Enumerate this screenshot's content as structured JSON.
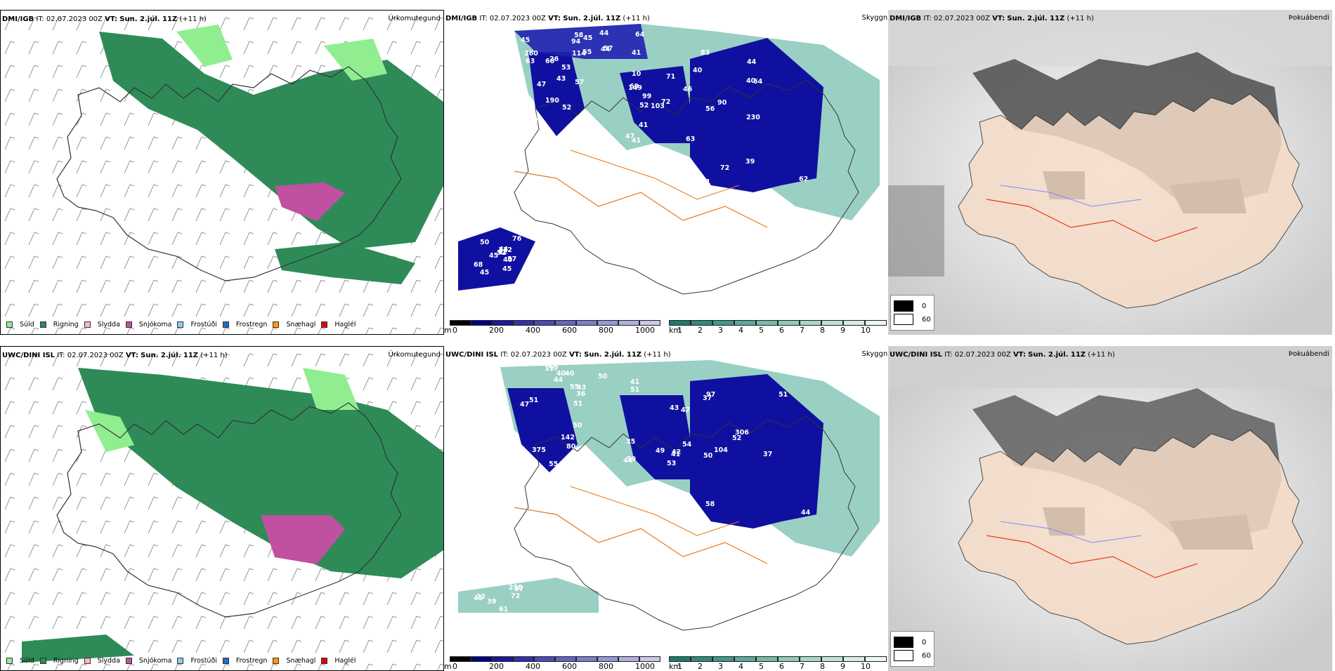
{
  "rows": [
    {
      "model_label": "DMI/IGB",
      "init_time": "IT: 02.07.2023 00Z",
      "valid_label": "VT:",
      "valid_time": "Sun. 2.júl. 11Z",
      "lead": "(+11 h)",
      "cloud_labels": [
        "190",
        "149",
        "230",
        "260",
        "112",
        "61",
        "71",
        "64",
        "44",
        "52",
        "63",
        "63",
        "56",
        "64",
        "45",
        "43",
        "41",
        "40",
        "45",
        "68",
        "47",
        "47",
        "72",
        "58",
        "44",
        "52",
        "69",
        "44",
        "45",
        "40",
        "57",
        "103",
        "39",
        "94",
        "50",
        "53",
        "41",
        "62",
        "41",
        "57",
        "26",
        "99",
        "90",
        "44",
        "45",
        "47",
        "72",
        "21",
        "114",
        "42",
        "53",
        "46",
        "40",
        "57",
        "45",
        "42",
        "10",
        "83",
        "55",
        "76",
        "60",
        "52"
      ]
    },
    {
      "model_label": "UWC/DINI ISL",
      "init_time": "IT: 02.07.2023 00Z",
      "valid_label": "VT:",
      "valid_time": "Sun. 2.júl. 11Z",
      "lead": "(+11 h)",
      "cloud_labels": [
        "142",
        "54",
        "58",
        "52",
        "40",
        "56",
        "59",
        "51",
        "40",
        "61",
        "47",
        "35",
        "37",
        "51",
        "39",
        "50",
        "49",
        "37",
        "40",
        "32",
        "36",
        "47",
        "52",
        "41",
        "33",
        "51",
        "42",
        "50",
        "117",
        "250",
        "55",
        "53",
        "306",
        "44",
        "57",
        "80",
        "41",
        "104",
        "43",
        "45",
        "51",
        "43",
        "44",
        "55",
        "72",
        "375",
        "44",
        "97",
        "50"
      ]
    }
  ],
  "panel_titles": {
    "precip": "Úrkomutegund",
    "cloud": "Skyggni",
    "fog": "Þokuábendi"
  },
  "precip_legend": [
    {
      "label": "Súld",
      "color": "#90ee90"
    },
    {
      "label": "Rigning",
      "color": "#2e8b57"
    },
    {
      "label": "Slydda",
      "color": "#ffb6c1"
    },
    {
      "label": "Snjókoma",
      "color": "#c050a0"
    },
    {
      "label": "Frostúði",
      "color": "#87cefa"
    },
    {
      "label": "Frostregn",
      "color": "#1e6fbf"
    },
    {
      "label": "Snæhagl",
      "color": "#ff9900"
    },
    {
      "label": "Haglél",
      "color": "#e60000"
    }
  ],
  "cloud_base_bar": {
    "unit": "m",
    "ticks": [
      "0",
      "200",
      "400",
      "600",
      "800",
      "1000"
    ],
    "colors": [
      "#000000",
      "#000080",
      "#1a1a9a",
      "#3232a8",
      "#4b4bb4",
      "#6464c0",
      "#7d7dcc",
      "#9696d8",
      "#afafe2",
      "#c8c8ec"
    ]
  },
  "visibility_bar": {
    "unit": "km",
    "ticks": [
      "1",
      "2",
      "3",
      "4",
      "5",
      "6",
      "7",
      "8",
      "9",
      "10"
    ],
    "colors": [
      "#1f7a6a",
      "#2f8a7a",
      "#3f9a8a",
      "#5aaa9a",
      "#75baaa",
      "#90cab8",
      "#a8d6c8",
      "#c0e2d6",
      "#d6ece4",
      "#ecf6f2"
    ]
  },
  "fog_legend": [
    {
      "label": "0",
      "color": "#000000"
    },
    {
      "label": "60",
      "color": "#ffffff"
    }
  ],
  "colors": {
    "rain": "#2e8b57",
    "drizzle": "#90ee90",
    "snow": "#c050a0",
    "cloud_base": "#1010a0",
    "visibility": "#7fc4b4",
    "land": "#f5dcc8",
    "roads": "#e07a20"
  }
}
